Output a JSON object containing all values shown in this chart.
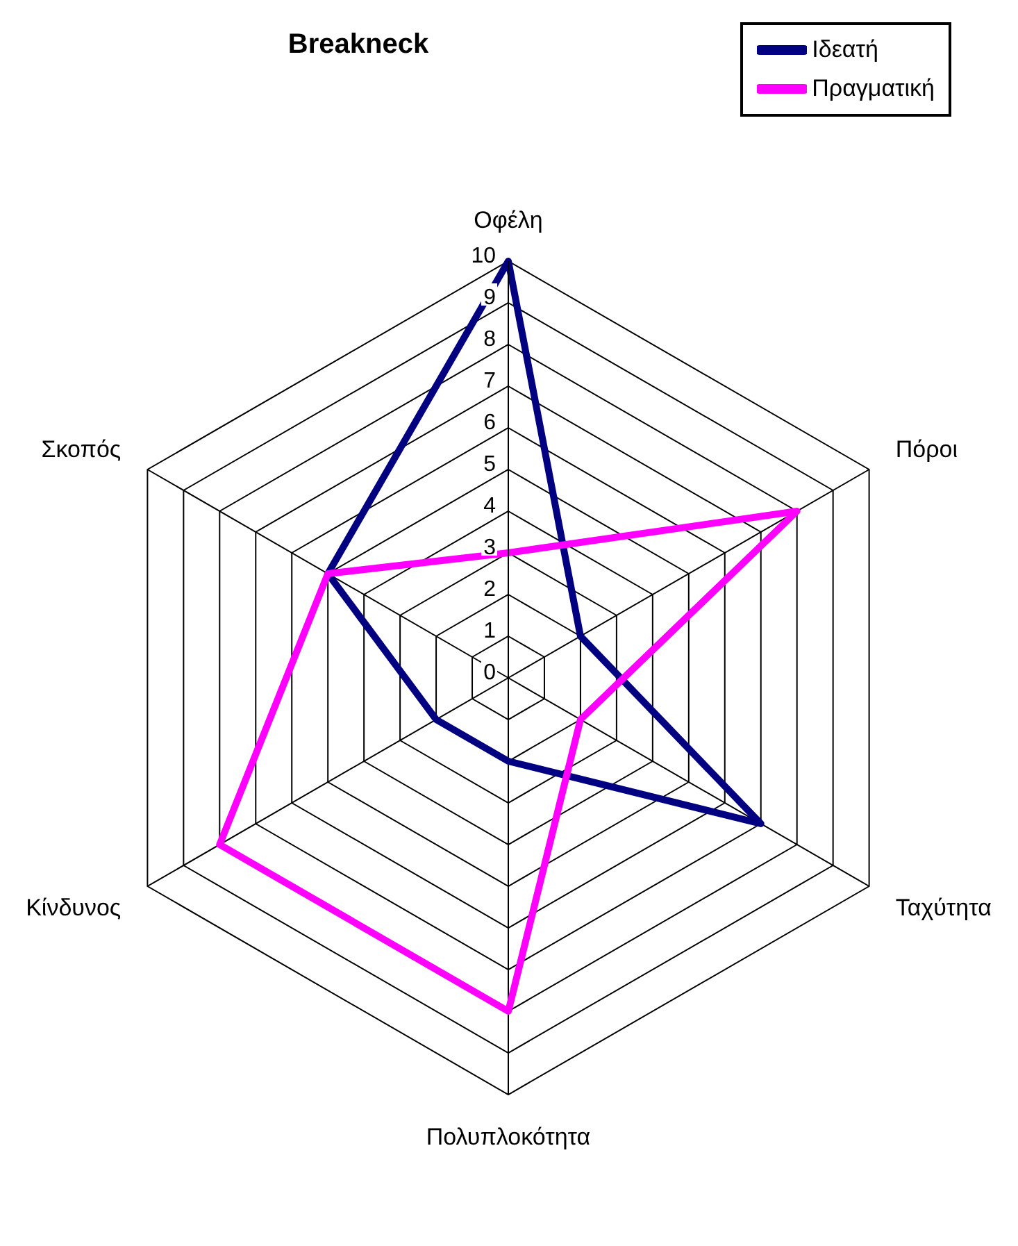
{
  "chart_data": {
    "type": "radar",
    "title": "Breakneck",
    "categories": [
      "Οφέλη",
      "Πόροι",
      "Ταχύτητα",
      "Πολυπλοκότητα",
      "Κίνδυνος",
      "Σκοπός"
    ],
    "series": [
      {
        "name": "Ιδεατή",
        "color": "#000080",
        "values": [
          10,
          2,
          7,
          2,
          2,
          5
        ]
      },
      {
        "name": "Πραγματική",
        "color": "#ff00ff",
        "values": [
          3,
          8,
          2,
          8,
          8,
          5
        ]
      }
    ],
    "ylim": [
      0,
      10
    ],
    "yticks": [
      0,
      1,
      2,
      3,
      4,
      5,
      6,
      7,
      8,
      9,
      10
    ],
    "grid": true,
    "legend": "top right",
    "marker": "none",
    "line_style": "solid"
  }
}
